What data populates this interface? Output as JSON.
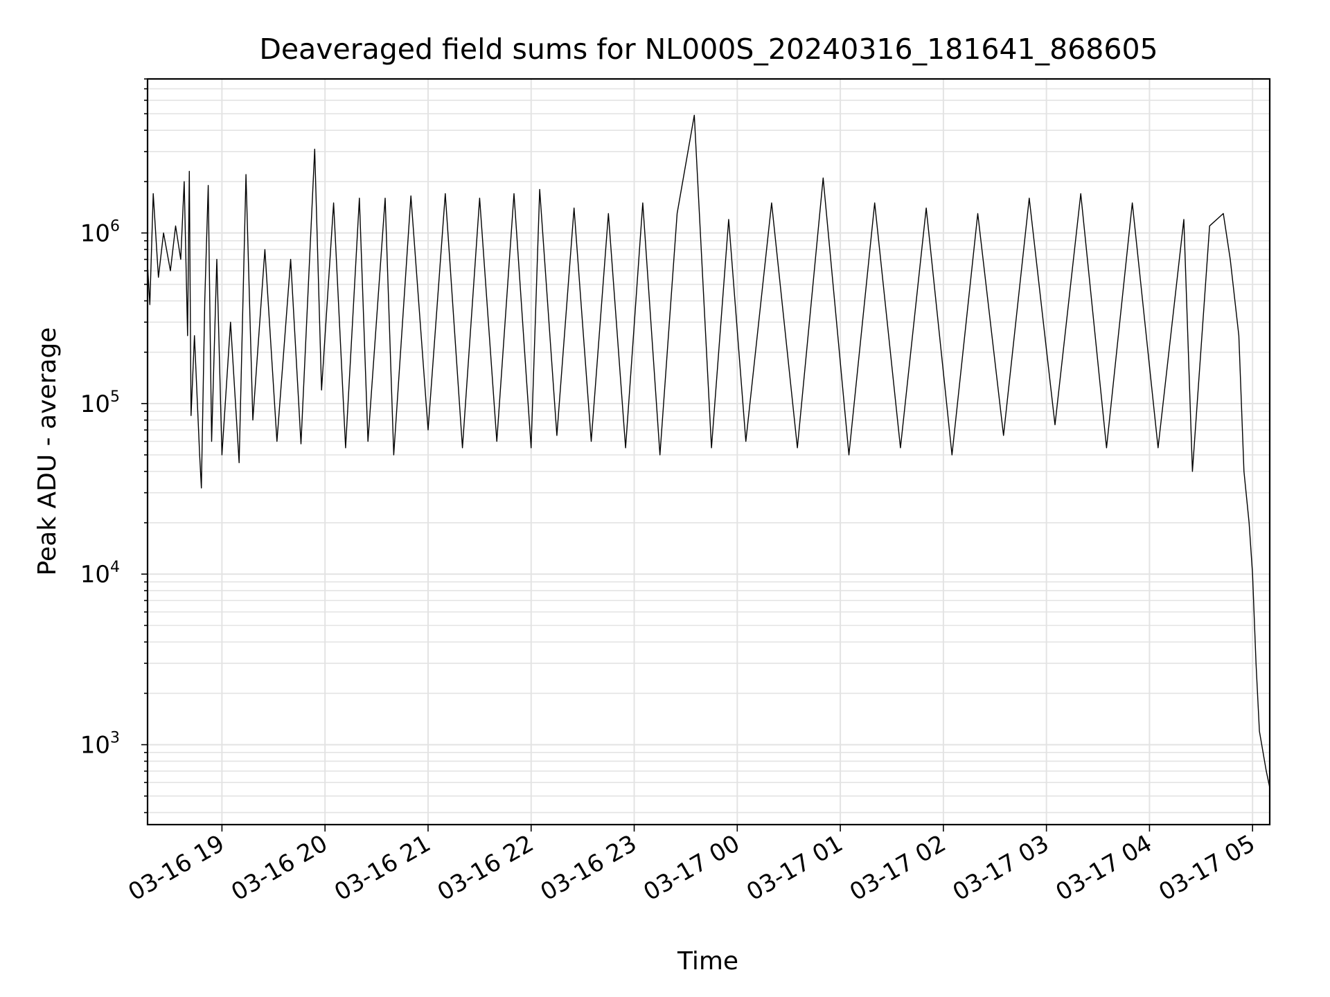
{
  "chart_data": {
    "type": "line",
    "title": "Deaveraged field sums for NL000S_20240316_181641_868605",
    "xlabel": "Time",
    "ylabel": "Peak ADU - average",
    "y_scale": "log",
    "ylim": [
      340,
      8000000
    ],
    "xlim": [
      "2024-03-16T18:16:41",
      "2024-03-17T05:10:00"
    ],
    "grid": true,
    "colors": {
      "line": "#000000",
      "grid": "#e3e3e3"
    },
    "x_ticks": [
      {
        "time": "2024-03-16T19:00",
        "label": "03-16 19"
      },
      {
        "time": "2024-03-16T20:00",
        "label": "03-16 20"
      },
      {
        "time": "2024-03-16T21:00",
        "label": "03-16 21"
      },
      {
        "time": "2024-03-16T22:00",
        "label": "03-16 22"
      },
      {
        "time": "2024-03-16T23:00",
        "label": "03-16 23"
      },
      {
        "time": "2024-03-17T00:00",
        "label": "03-17 00"
      },
      {
        "time": "2024-03-17T01:00",
        "label": "03-17 01"
      },
      {
        "time": "2024-03-17T02:00",
        "label": "03-17 02"
      },
      {
        "time": "2024-03-17T03:00",
        "label": "03-17 03"
      },
      {
        "time": "2024-03-17T04:00",
        "label": "03-17 04"
      },
      {
        "time": "2024-03-17T05:00",
        "label": "03-17 05"
      }
    ],
    "y_ticks": [
      {
        "value": 1000,
        "base": "10",
        "exp": "3"
      },
      {
        "value": 10000,
        "base": "10",
        "exp": "4"
      },
      {
        "value": 100000,
        "base": "10",
        "exp": "5"
      },
      {
        "value": 1000000,
        "base": "10",
        "exp": "6"
      }
    ],
    "series": [
      {
        "values": [
          [
            "2024-03-16T18:16:41",
            650000
          ],
          [
            "2024-03-16T18:18",
            380000
          ],
          [
            "2024-03-16T18:20",
            1700000
          ],
          [
            "2024-03-16T18:23",
            550000
          ],
          [
            "2024-03-16T18:26",
            1000000
          ],
          [
            "2024-03-16T18:30",
            600000
          ],
          [
            "2024-03-16T18:33",
            1100000
          ],
          [
            "2024-03-16T18:36",
            700000
          ],
          [
            "2024-03-16T18:38",
            2000000
          ],
          [
            "2024-03-16T18:40",
            250000
          ],
          [
            "2024-03-16T18:41",
            2300000
          ],
          [
            "2024-03-16T18:42",
            85000
          ],
          [
            "2024-03-16T18:44",
            250000
          ],
          [
            "2024-03-16T18:47",
            50000
          ],
          [
            "2024-03-16T18:48",
            32000
          ],
          [
            "2024-03-16T18:50",
            400000
          ],
          [
            "2024-03-16T18:52",
            1900000
          ],
          [
            "2024-03-16T18:54",
            60000
          ],
          [
            "2024-03-16T18:57",
            700000
          ],
          [
            "2024-03-16T19:00",
            50000
          ],
          [
            "2024-03-16T19:05",
            300000
          ],
          [
            "2024-03-16T19:10",
            45000
          ],
          [
            "2024-03-16T19:14",
            2200000
          ],
          [
            "2024-03-16T19:18",
            80000
          ],
          [
            "2024-03-16T19:25",
            800000
          ],
          [
            "2024-03-16T19:32",
            60000
          ],
          [
            "2024-03-16T19:40",
            700000
          ],
          [
            "2024-03-16T19:46",
            58000
          ],
          [
            "2024-03-16T19:54",
            3100000
          ],
          [
            "2024-03-16T19:58",
            120000
          ],
          [
            "2024-03-16T20:05",
            1500000
          ],
          [
            "2024-03-16T20:12",
            55000
          ],
          [
            "2024-03-16T20:20",
            1600000
          ],
          [
            "2024-03-16T20:25",
            60000
          ],
          [
            "2024-03-16T20:35",
            1600000
          ],
          [
            "2024-03-16T20:40",
            50000
          ],
          [
            "2024-03-16T20:50",
            1650000
          ],
          [
            "2024-03-16T21:00",
            70000
          ],
          [
            "2024-03-16T21:10",
            1700000
          ],
          [
            "2024-03-16T21:20",
            55000
          ],
          [
            "2024-03-16T21:30",
            1600000
          ],
          [
            "2024-03-16T21:40",
            60000
          ],
          [
            "2024-03-16T21:50",
            1700000
          ],
          [
            "2024-03-16T22:00",
            55000
          ],
          [
            "2024-03-16T22:05",
            1800000
          ],
          [
            "2024-03-16T22:15",
            65000
          ],
          [
            "2024-03-16T22:25",
            1400000
          ],
          [
            "2024-03-16T22:35",
            60000
          ],
          [
            "2024-03-16T22:45",
            1300000
          ],
          [
            "2024-03-16T22:55",
            55000
          ],
          [
            "2024-03-16T23:05",
            1500000
          ],
          [
            "2024-03-16T23:15",
            50000
          ],
          [
            "2024-03-16T23:25",
            1300000
          ],
          [
            "2024-03-16T23:35",
            4900000
          ],
          [
            "2024-03-16T23:45",
            55000
          ],
          [
            "2024-03-16T23:55",
            1200000
          ],
          [
            "2024-03-17T00:05",
            60000
          ],
          [
            "2024-03-17T00:20",
            1500000
          ],
          [
            "2024-03-17T00:35",
            55000
          ],
          [
            "2024-03-17T00:50",
            2100000
          ],
          [
            "2024-03-17T01:05",
            50000
          ],
          [
            "2024-03-17T01:20",
            1500000
          ],
          [
            "2024-03-17T01:35",
            55000
          ],
          [
            "2024-03-17T01:50",
            1400000
          ],
          [
            "2024-03-17T02:05",
            50000
          ],
          [
            "2024-03-17T02:20",
            1300000
          ],
          [
            "2024-03-17T02:35",
            65000
          ],
          [
            "2024-03-17T02:50",
            1600000
          ],
          [
            "2024-03-17T03:05",
            75000
          ],
          [
            "2024-03-17T03:20",
            1700000
          ],
          [
            "2024-03-17T03:35",
            55000
          ],
          [
            "2024-03-17T03:50",
            1500000
          ],
          [
            "2024-03-17T04:05",
            55000
          ],
          [
            "2024-03-17T04:20",
            1200000
          ],
          [
            "2024-03-17T04:25",
            40000
          ],
          [
            "2024-03-17T04:35",
            1100000
          ],
          [
            "2024-03-17T04:43",
            1300000
          ],
          [
            "2024-03-17T04:47",
            700000
          ],
          [
            "2024-03-17T04:52",
            250000
          ],
          [
            "2024-03-17T04:55",
            40000
          ],
          [
            "2024-03-17T04:58",
            20000
          ],
          [
            "2024-03-17T05:00",
            10000
          ],
          [
            "2024-03-17T05:02",
            3000
          ],
          [
            "2024-03-17T05:04",
            1200
          ],
          [
            "2024-03-17T05:08",
            700
          ],
          [
            "2024-03-17T05:10",
            560
          ]
        ]
      }
    ]
  }
}
